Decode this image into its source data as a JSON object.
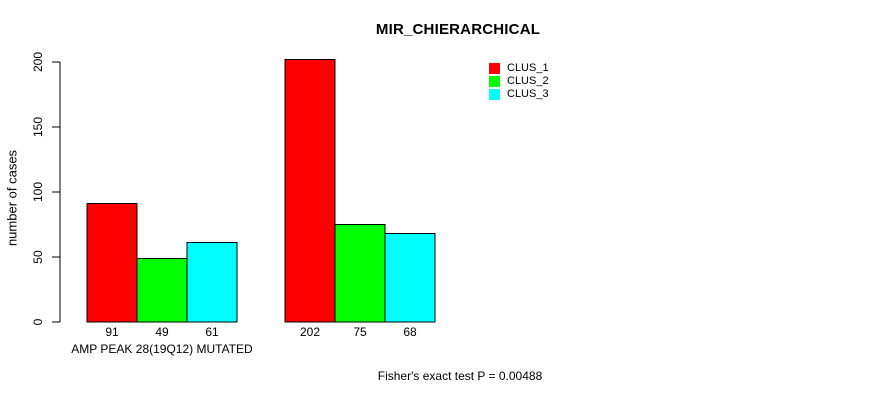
{
  "chart_data": {
    "type": "bar",
    "title": "MIR_CHIERARCHICAL",
    "ylabel": "number of cases",
    "xlabel": "",
    "ylim": [
      0,
      200
    ],
    "yticks": [
      0,
      50,
      100,
      150,
      200
    ],
    "grid": false,
    "legend_position": "top-right",
    "categories": [
      "AMP PEAK 28(19Q12) MUTATED",
      ""
    ],
    "series": [
      {
        "name": "CLUS_1",
        "color": "#ff0000",
        "values": [
          91,
          202
        ]
      },
      {
        "name": "CLUS_2",
        "color": "#00ff00",
        "values": [
          49,
          75
        ]
      },
      {
        "name": "CLUS_3",
        "color": "#00ffff",
        "values": [
          61,
          68
        ]
      }
    ],
    "bar_value_labels_shown": true,
    "bar_border_color": "#000000",
    "axis_color": "#000000",
    "annotation": "Fisher's exact test P = 0.00488"
  }
}
